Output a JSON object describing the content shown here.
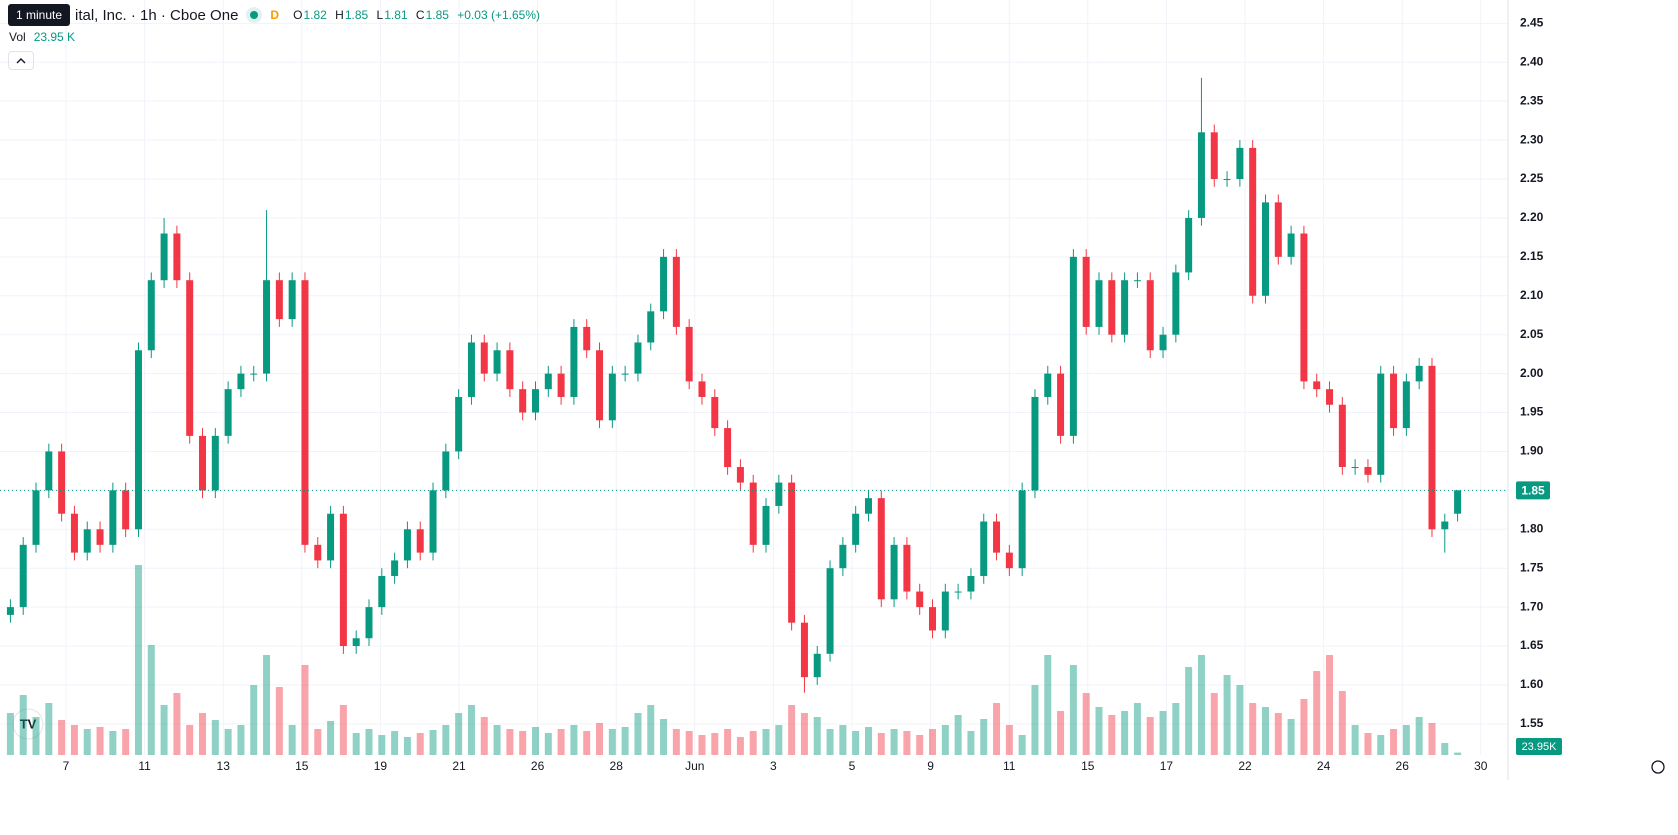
{
  "chart_data": {
    "type": "candlestick",
    "tooltip": "1 minute",
    "title": "ital, Inc. · 1h · Cboe One",
    "badge": "D",
    "header": {
      "o_label": "O",
      "o": 1.82,
      "h_label": "H",
      "h": 1.85,
      "l_label": "L",
      "l": 1.81,
      "c_label": "C",
      "c": 1.85,
      "change": "+0.03 (+1.65%)"
    },
    "vol_label": "Vol",
    "vol_value": "23.95 K",
    "last_price": {
      "value": 1.85,
      "label": "1.85"
    },
    "vol_axis_label": "23.95K",
    "up_color": "#089981",
    "down_color": "#f23645",
    "open": [
      1.69,
      1.7,
      1.78,
      1.85,
      1.9,
      1.82,
      1.77,
      1.8,
      1.78,
      1.85,
      1.8,
      2.03,
      2.12,
      2.18,
      2.12,
      1.92,
      1.85,
      1.92,
      1.98,
      2.0,
      2.0,
      2.12,
      2.07,
      2.12,
      1.78,
      1.76,
      1.82,
      1.65,
      1.66,
      1.7,
      1.74,
      1.76,
      1.8,
      1.77,
      1.85,
      1.9,
      1.97,
      2.04,
      2.0,
      2.03,
      1.98,
      1.95,
      1.98,
      2.0,
      1.97,
      2.06,
      2.03,
      1.94,
      2.0,
      2.0,
      2.04,
      2.08,
      2.15,
      2.06,
      1.99,
      1.97,
      1.93,
      1.88,
      1.86,
      1.78,
      1.83,
      1.86,
      1.68,
      1.61,
      1.64,
      1.75,
      1.78,
      1.82,
      1.84,
      1.71,
      1.78,
      1.72,
      1.7,
      1.67,
      1.72,
      1.72,
      1.74,
      1.81,
      1.77,
      1.75,
      1.85,
      1.97,
      2.0,
      1.92,
      2.15,
      2.06,
      2.12,
      2.05,
      2.12,
      2.12,
      2.03,
      2.05,
      2.13,
      2.2,
      2.31,
      2.25,
      2.25,
      2.29,
      2.1,
      2.22,
      2.15,
      2.18,
      1.99,
      1.98,
      1.96,
      1.88,
      1.88,
      1.87,
      2.0,
      1.93,
      1.99,
      2.01,
      1.8,
      1.82
    ],
    "high": [
      1.71,
      1.79,
      1.86,
      1.91,
      1.91,
      1.83,
      1.81,
      1.81,
      1.86,
      1.86,
      2.04,
      2.13,
      2.2,
      2.19,
      2.13,
      1.93,
      1.93,
      1.99,
      2.01,
      2.01,
      2.21,
      2.13,
      2.13,
      2.13,
      1.79,
      1.83,
      1.83,
      1.67,
      1.71,
      1.75,
      1.77,
      1.81,
      1.81,
      1.86,
      1.91,
      1.98,
      2.05,
      2.05,
      2.04,
      2.04,
      1.99,
      1.99,
      2.01,
      2.01,
      2.07,
      2.07,
      2.04,
      2.01,
      2.01,
      2.05,
      2.09,
      2.16,
      2.16,
      2.07,
      2.0,
      1.98,
      1.94,
      1.89,
      1.87,
      1.84,
      1.87,
      1.87,
      1.69,
      1.65,
      1.76,
      1.79,
      1.83,
      1.85,
      1.85,
      1.79,
      1.79,
      1.73,
      1.71,
      1.73,
      1.73,
      1.75,
      1.82,
      1.82,
      1.78,
      1.86,
      1.98,
      2.01,
      2.01,
      2.16,
      2.16,
      2.13,
      2.13,
      2.13,
      2.13,
      2.13,
      2.06,
      2.14,
      2.21,
      2.38,
      2.32,
      2.26,
      2.3,
      2.3,
      2.23,
      2.23,
      2.19,
      2.19,
      2.0,
      1.99,
      1.97,
      1.89,
      1.89,
      2.01,
      2.01,
      2.0,
      2.02,
      2.02,
      1.82,
      1.85
    ],
    "low": [
      1.68,
      1.69,
      1.77,
      1.84,
      1.81,
      1.76,
      1.76,
      1.77,
      1.77,
      1.79,
      1.79,
      2.02,
      2.11,
      2.11,
      1.91,
      1.84,
      1.84,
      1.91,
      1.97,
      1.99,
      1.99,
      2.06,
      2.06,
      1.77,
      1.75,
      1.75,
      1.64,
      1.64,
      1.65,
      1.69,
      1.73,
      1.75,
      1.76,
      1.76,
      1.84,
      1.89,
      1.96,
      1.99,
      1.99,
      1.97,
      1.94,
      1.94,
      1.97,
      1.96,
      1.96,
      2.02,
      1.93,
      1.93,
      1.99,
      1.99,
      2.03,
      2.07,
      2.05,
      1.98,
      1.96,
      1.92,
      1.87,
      1.85,
      1.77,
      1.77,
      1.82,
      1.67,
      1.59,
      1.6,
      1.63,
      1.74,
      1.77,
      1.81,
      1.7,
      1.7,
      1.71,
      1.69,
      1.66,
      1.66,
      1.71,
      1.71,
      1.73,
      1.76,
      1.74,
      1.74,
      1.84,
      1.96,
      1.91,
      1.91,
      2.05,
      2.05,
      2.04,
      2.04,
      2.11,
      2.02,
      2.02,
      2.04,
      2.12,
      2.19,
      2.24,
      2.24,
      2.24,
      2.09,
      2.09,
      2.14,
      2.14,
      1.98,
      1.97,
      1.95,
      1.87,
      1.87,
      1.86,
      1.86,
      1.92,
      1.92,
      1.98,
      1.79,
      1.77,
      1.81
    ],
    "close": [
      1.7,
      1.78,
      1.85,
      1.9,
      1.82,
      1.77,
      1.8,
      1.78,
      1.85,
      1.8,
      2.03,
      2.12,
      2.18,
      2.12,
      1.92,
      1.85,
      1.92,
      1.98,
      2.0,
      2.0,
      2.12,
      2.07,
      2.12,
      1.78,
      1.76,
      1.82,
      1.65,
      1.66,
      1.7,
      1.74,
      1.76,
      1.8,
      1.77,
      1.85,
      1.9,
      1.97,
      2.04,
      2.0,
      2.03,
      1.98,
      1.95,
      1.98,
      2.0,
      1.97,
      2.06,
      2.03,
      1.94,
      2.0,
      2.0,
      2.04,
      2.08,
      2.15,
      2.06,
      1.99,
      1.97,
      1.93,
      1.88,
      1.86,
      1.78,
      1.83,
      1.86,
      1.68,
      1.61,
      1.64,
      1.75,
      1.78,
      1.82,
      1.84,
      1.71,
      1.78,
      1.72,
      1.7,
      1.67,
      1.72,
      1.72,
      1.74,
      1.81,
      1.77,
      1.75,
      1.85,
      1.97,
      2.0,
      1.92,
      2.15,
      2.06,
      2.12,
      2.05,
      2.12,
      2.12,
      2.03,
      2.05,
      2.13,
      2.2,
      2.31,
      2.25,
      2.25,
      2.29,
      2.1,
      2.22,
      2.15,
      2.18,
      1.99,
      1.98,
      1.96,
      1.88,
      1.88,
      1.87,
      2.0,
      1.93,
      1.99,
      2.01,
      1.8,
      1.81,
      1.85
    ],
    "volume": [
      420,
      600,
      380,
      520,
      350,
      300,
      260,
      280,
      240,
      260,
      1900,
      1100,
      500,
      620,
      300,
      420,
      350,
      260,
      300,
      700,
      1000,
      680,
      300,
      900,
      260,
      340,
      500,
      220,
      260,
      200,
      240,
      180,
      220,
      250,
      300,
      420,
      500,
      380,
      300,
      260,
      240,
      280,
      220,
      260,
      300,
      240,
      320,
      260,
      280,
      420,
      500,
      360,
      260,
      240,
      200,
      220,
      260,
      180,
      240,
      260,
      300,
      500,
      420,
      380,
      260,
      300,
      240,
      280,
      220,
      260,
      240,
      200,
      260,
      300,
      400,
      240,
      360,
      520,
      300,
      200,
      700,
      1000,
      440,
      900,
      620,
      480,
      400,
      440,
      520,
      380,
      440,
      520,
      880,
      1000,
      620,
      800,
      700,
      520,
      480,
      420,
      360,
      560,
      840,
      1000,
      640,
      300,
      220,
      200,
      260,
      300,
      380,
      320,
      120,
      23.95
    ],
    "x_labels": [
      "7",
      "11",
      "13",
      "15",
      "19",
      "21",
      "26",
      "28",
      "Jun",
      "3",
      "5",
      "9",
      "11",
      "15",
      "17",
      "22",
      "24",
      "26",
      "30"
    ],
    "ylim": [
      1.51,
      2.48
    ],
    "yticks": [
      1.55,
      {
        "value": 1.6,
        "label": "1.60"
      },
      1.65,
      {
        "value": 1.7,
        "label": "1.70"
      },
      1.75,
      {
        "value": 1.8,
        "label": "1.80"
      },
      1.85,
      {
        "value": 1.9,
        "label": "1.90"
      },
      1.95,
      {
        "value": 2.0,
        "label": "2.00"
      },
      2.05,
      {
        "value": 2.1,
        "label": "2.10"
      },
      2.15,
      {
        "value": 2.2,
        "label": "2.20"
      },
      2.25,
      {
        "value": 2.3,
        "label": "2.30"
      },
      2.35,
      {
        "value": 2.4,
        "label": "2.40"
      },
      2.45
    ],
    "grid": true
  }
}
